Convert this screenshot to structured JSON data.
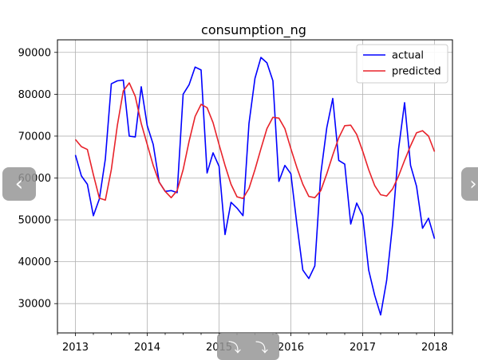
{
  "chart_data": {
    "type": "line",
    "title": "consumption_ng",
    "xlabel": "",
    "ylabel": "",
    "xlim": [
      2012.75,
      2018.25
    ],
    "ylim": [
      23000,
      93000
    ],
    "x_ticks": [
      2013,
      2014,
      2015,
      2016,
      2017,
      2018
    ],
    "x_tick_labels": [
      "2013",
      "2014",
      "2015",
      "2016",
      "2017",
      "2018"
    ],
    "y_ticks": [
      30000,
      40000,
      50000,
      60000,
      70000,
      80000,
      90000
    ],
    "y_tick_labels": [
      "30000",
      "40000",
      "50000",
      "60000",
      "70000",
      "80000",
      "90000"
    ],
    "grid": true,
    "legend_position": "top-right",
    "x_minor_ticks_per_year": 4,
    "series": [
      {
        "name": "actual",
        "color": "#0000ff",
        "x": [
          2013.0,
          2013.083,
          2013.167,
          2013.25,
          2013.333,
          2013.417,
          2013.5,
          2013.583,
          2013.667,
          2013.75,
          2013.833,
          2013.917,
          2014.0,
          2014.083,
          2014.167,
          2014.25,
          2014.333,
          2014.417,
          2014.5,
          2014.583,
          2014.667,
          2014.75,
          2014.833,
          2014.917,
          2015.0,
          2015.083,
          2015.167,
          2015.25,
          2015.333,
          2015.417,
          2015.5,
          2015.583,
          2015.667,
          2015.75,
          2015.833,
          2015.917,
          2016.0,
          2016.083,
          2016.167,
          2016.25,
          2016.333,
          2016.417,
          2016.5,
          2016.583,
          2016.667,
          2016.75,
          2016.833,
          2016.917,
          2017.0,
          2017.083,
          2017.167,
          2017.25,
          2017.333,
          2017.417,
          2017.5,
          2017.583,
          2017.667,
          2017.75,
          2017.833,
          2017.917,
          2018.0
        ],
        "values": [
          65500,
          60500,
          58500,
          51000,
          55000,
          64500,
          82500,
          83200,
          83400,
          70000,
          69800,
          81800,
          72500,
          68000,
          59000,
          56800,
          57000,
          56500,
          80000,
          82300,
          86500,
          85800,
          61200,
          66000,
          62800,
          46500,
          54200,
          52800,
          51000,
          73000,
          83800,
          88800,
          87500,
          83200,
          59200,
          63000,
          61000,
          49000,
          38000,
          36000,
          39000,
          61000,
          72000,
          79000,
          64200,
          63300,
          49000,
          54000,
          51000,
          38000,
          32000,
          27300,
          35500,
          49000,
          67000,
          78000,
          63000,
          58000,
          48000,
          50400,
          45500
        ]
      },
      {
        "name": "predicted",
        "color": "#e8222a",
        "x": [
          2013.0,
          2013.083,
          2013.167,
          2013.25,
          2013.333,
          2013.417,
          2013.5,
          2013.583,
          2013.667,
          2013.75,
          2013.833,
          2013.917,
          2014.0,
          2014.083,
          2014.167,
          2014.25,
          2014.333,
          2014.417,
          2014.5,
          2014.583,
          2014.667,
          2014.75,
          2014.833,
          2014.917,
          2015.0,
          2015.083,
          2015.167,
          2015.25,
          2015.333,
          2015.417,
          2015.5,
          2015.583,
          2015.667,
          2015.75,
          2015.833,
          2015.917,
          2016.0,
          2016.083,
          2016.167,
          2016.25,
          2016.333,
          2016.417,
          2016.5,
          2016.583,
          2016.667,
          2016.75,
          2016.833,
          2016.917,
          2017.0,
          2017.083,
          2017.167,
          2017.25,
          2017.333,
          2017.417,
          2017.5,
          2017.583,
          2017.667,
          2017.75,
          2017.833,
          2017.917,
          2018.0
        ],
        "values": [
          69200,
          67500,
          66800,
          60800,
          55200,
          54700,
          62000,
          72500,
          80800,
          82700,
          79500,
          73000,
          68000,
          63000,
          59000,
          56800,
          55300,
          57000,
          62000,
          68800,
          74700,
          77600,
          76800,
          73200,
          68000,
          63000,
          58500,
          55500,
          55100,
          57500,
          62000,
          67000,
          71800,
          74500,
          74300,
          71800,
          67000,
          62500,
          58500,
          55600,
          55300,
          57000,
          61000,
          65500,
          69600,
          72500,
          72600,
          70400,
          66400,
          62000,
          58200,
          56000,
          55700,
          57400,
          60500,
          64200,
          67700,
          70800,
          71300,
          70000,
          66300
        ]
      }
    ]
  },
  "nav": {
    "prev_glyph": "‹",
    "next_glyph": "›",
    "bottom_left_glyph": "⤵",
    "bottom_right_glyph": "⤵"
  }
}
